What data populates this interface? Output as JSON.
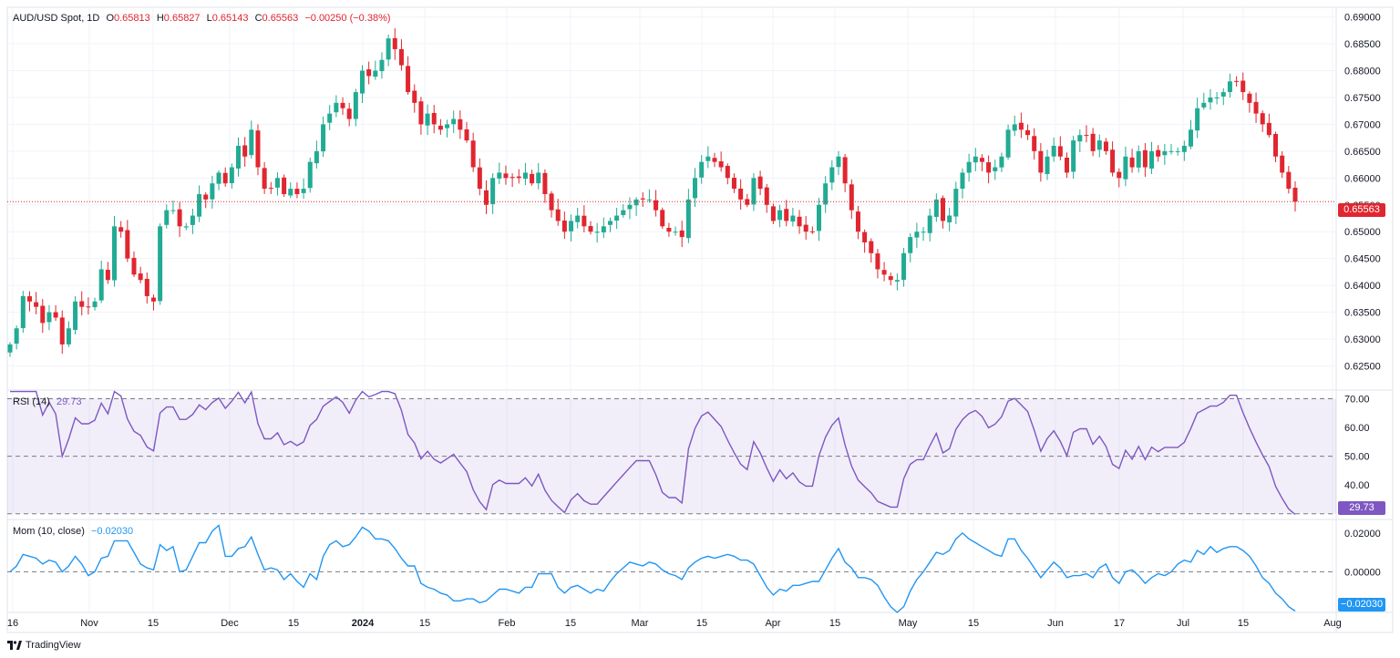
{
  "header": {
    "symbol": "AUD/USD Spot, 1D",
    "open_label": "O",
    "open": "0.65813",
    "high_label": "H",
    "high": "0.65827",
    "low_label": "L",
    "low": "0.65143",
    "close_label": "C",
    "close": "0.65563",
    "change": "−0.00250 (−0.38%)"
  },
  "rsi": {
    "label": "RSI (14)",
    "value": "29.73"
  },
  "mom": {
    "label": "Mom (10, close)",
    "value": "−0.02030"
  },
  "last_price_tag": "0.65563",
  "rsi_tag": "29.73",
  "mom_tag": "−0.02030",
  "brand": "TradingView",
  "colors": {
    "up": "#22ab94",
    "down": "#e0262f",
    "rsi": "#7e57c2",
    "mom": "#2196f3"
  },
  "chart_data": [
    {
      "type": "candlestick",
      "title": "AUD/USD Spot, 1D",
      "yticks": [
        "0.69000",
        "0.68500",
        "0.68000",
        "0.67500",
        "0.67000",
        "0.66500",
        "0.66000",
        "0.65500",
        "0.65000",
        "0.64500",
        "0.64000",
        "0.63500",
        "0.63000",
        "0.62500"
      ],
      "ylim": [
        0.6205,
        0.6918
      ],
      "xticks": [
        "16",
        "Nov",
        "15",
        "Dec",
        "15",
        "2024",
        "15",
        "Feb",
        "15",
        "Mar",
        "15",
        "Apr",
        "15",
        "May",
        "15",
        "Jun",
        "17",
        "Jul",
        "15",
        "Aug"
      ],
      "close_series": [
        0.629,
        0.632,
        0.638,
        0.637,
        0.636,
        0.633,
        0.635,
        0.634,
        0.629,
        0.632,
        0.637,
        0.636,
        0.636,
        0.637,
        0.643,
        0.641,
        0.651,
        0.65,
        0.645,
        0.642,
        0.641,
        0.638,
        0.637,
        0.651,
        0.654,
        0.654,
        0.651,
        0.651,
        0.653,
        0.657,
        0.656,
        0.659,
        0.661,
        0.659,
        0.662,
        0.666,
        0.664,
        0.669,
        0.662,
        0.658,
        0.658,
        0.66,
        0.657,
        0.658,
        0.657,
        0.658,
        0.663,
        0.665,
        0.67,
        0.672,
        0.674,
        0.673,
        0.671,
        0.676,
        0.68,
        0.679,
        0.68,
        0.682,
        0.686,
        0.684,
        0.681,
        0.676,
        0.674,
        0.67,
        0.672,
        0.67,
        0.669,
        0.67,
        0.671,
        0.669,
        0.667,
        0.662,
        0.658,
        0.655,
        0.66,
        0.661,
        0.66,
        0.66,
        0.66,
        0.661,
        0.659,
        0.661,
        0.657,
        0.654,
        0.652,
        0.65,
        0.652,
        0.653,
        0.651,
        0.65,
        0.65,
        0.651,
        0.652,
        0.653,
        0.654,
        0.655,
        0.656,
        0.656,
        0.656,
        0.654,
        0.651,
        0.65,
        0.65,
        0.649,
        0.656,
        0.66,
        0.663,
        0.664,
        0.663,
        0.662,
        0.66,
        0.658,
        0.656,
        0.655,
        0.66,
        0.658,
        0.655,
        0.652,
        0.654,
        0.652,
        0.653,
        0.651,
        0.65,
        0.65,
        0.655,
        0.659,
        0.662,
        0.664,
        0.659,
        0.654,
        0.65,
        0.648,
        0.646,
        0.643,
        0.642,
        0.641,
        0.641,
        0.646,
        0.649,
        0.65,
        0.65,
        0.653,
        0.656,
        0.652,
        0.653,
        0.658,
        0.661,
        0.663,
        0.664,
        0.663,
        0.661,
        0.662,
        0.664,
        0.669,
        0.67,
        0.669,
        0.668,
        0.665,
        0.661,
        0.664,
        0.666,
        0.664,
        0.661,
        0.667,
        0.668,
        0.668,
        0.665,
        0.667,
        0.665,
        0.661,
        0.66,
        0.664,
        0.662,
        0.665,
        0.662,
        0.665,
        0.664,
        0.665,
        0.665,
        0.665,
        0.666,
        0.669,
        0.673,
        0.674,
        0.675,
        0.675,
        0.676,
        0.678,
        0.678,
        0.676,
        0.674,
        0.672,
        0.67,
        0.668,
        0.664,
        0.661,
        0.658,
        0.6556
      ]
    },
    {
      "type": "line",
      "title": "RSI (14)",
      "yticks": [
        "70.00",
        "60.00",
        "50.00",
        "40.00"
      ],
      "ylim": [
        28,
        73
      ],
      "bands": [
        70,
        50,
        30
      ],
      "last": 29.73
    },
    {
      "type": "line",
      "title": "Mom (10, close)",
      "yticks": [
        "0.02000",
        "0.00000"
      ],
      "ylim": [
        -0.021,
        0.027
      ],
      "last": -0.0203
    }
  ]
}
